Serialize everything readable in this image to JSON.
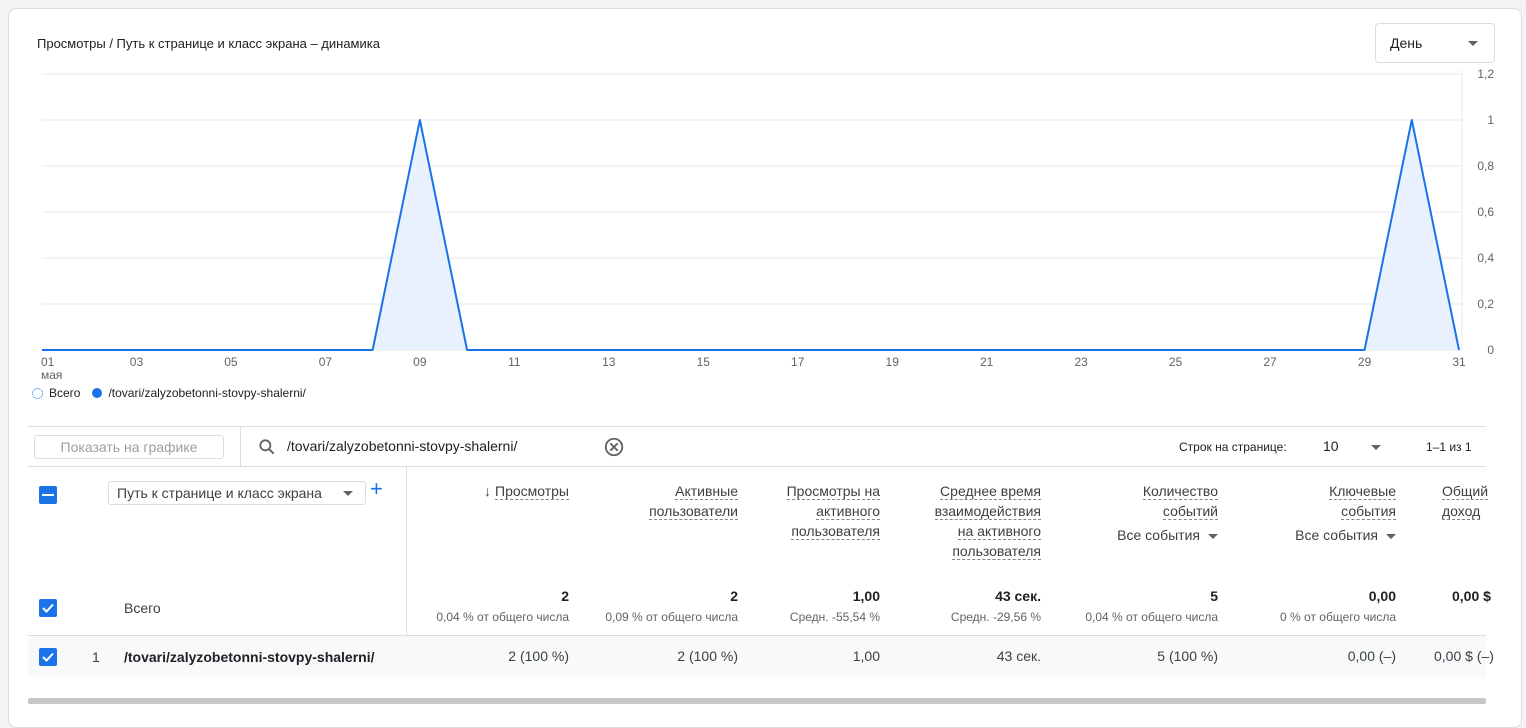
{
  "header": {
    "chart_title": "Просмотры / Путь к странице и класс экрана – динамика",
    "period_select": "День"
  },
  "chart_data": {
    "type": "area",
    "title": "Просмотры / Путь к странице и класс экрана – динамика",
    "x_tick_labels": [
      "01",
      "03",
      "05",
      "07",
      "09",
      "11",
      "13",
      "15",
      "17",
      "19",
      "21",
      "23",
      "25",
      "27",
      "29",
      "31"
    ],
    "x_month_label": "мая",
    "x": [
      1,
      2,
      3,
      4,
      5,
      6,
      7,
      8,
      9,
      10,
      11,
      12,
      13,
      14,
      15,
      16,
      17,
      18,
      19,
      20,
      21,
      22,
      23,
      24,
      25,
      26,
      27,
      28,
      29,
      30,
      31
    ],
    "series": [
      {
        "name": "/tovari/zalyzobetonni-stovpy-shalerni/",
        "values": [
          0,
          0,
          0,
          0,
          0,
          0,
          0,
          0,
          1,
          0,
          0,
          0,
          0,
          0,
          0,
          0,
          0,
          0,
          0,
          0,
          0,
          0,
          0,
          0,
          0,
          0,
          0,
          0,
          0,
          1,
          0
        ]
      }
    ],
    "y_tick_labels": [
      "0",
      "0,2",
      "0,4",
      "0,6",
      "0,8",
      "1",
      "1,2"
    ],
    "ylim": [
      0,
      1.2
    ],
    "grid": true,
    "legend": "bottom-left"
  },
  "legend": {
    "total": "Всего",
    "series": "/tovari/zalyzobetonni-stovpy-shalerni/"
  },
  "toolbar": {
    "show_on_chart": "Показать на графике",
    "search_value": "/tovari/zalyzobetonni-stovpy-shalerni/",
    "rows_label": "Строк на странице:",
    "rows_value": "10",
    "pager": "1–1 из 1"
  },
  "table": {
    "dimension_select": "Путь к странице и класс экрана",
    "columns": [
      {
        "label": "Просмотры",
        "lines": [
          "Просмотры"
        ]
      },
      {
        "label": "Активные пользователи",
        "lines": [
          "Активные",
          "пользователи"
        ]
      },
      {
        "label": "Просмотры на активного пользователя",
        "lines": [
          "Просмотры на",
          "активного",
          "пользователя"
        ]
      },
      {
        "label": "Среднее время взаимодействия на активного пользователя",
        "lines": [
          "Среднее время",
          "взаимодействия",
          "на активного",
          "пользователя"
        ]
      },
      {
        "label": "Количество событий",
        "lines": [
          "Количество",
          "событий"
        ],
        "sub": "Все события"
      },
      {
        "label": "Ключевые события",
        "lines": [
          "Ключевые",
          "события"
        ],
        "sub": "Все события"
      },
      {
        "label": "Общий доход",
        "lines": [
          "Общий",
          "доход"
        ]
      }
    ],
    "total": {
      "label": "Всего",
      "values": [
        "2",
        "2",
        "1,00",
        "43 сек.",
        "5",
        "0,00",
        "0,00 $"
      ],
      "subs": [
        "0,04 % от общего числа",
        "0,09 % от общего числа",
        "Средн. -55,54 %",
        "Средн. -29,56 %",
        "0,04 % от общего числа",
        "0 % от общего числа",
        ""
      ]
    },
    "rows": [
      {
        "index": "1",
        "dimension": "/tovari/zalyzobetonni-stovpy-shalerni/",
        "values": [
          "2 (100 %)",
          "2 (100 %)",
          "1,00",
          "43 сек.",
          "5 (100 %)",
          "0,00 (–)",
          "0,00 $ (–)"
        ]
      }
    ]
  }
}
